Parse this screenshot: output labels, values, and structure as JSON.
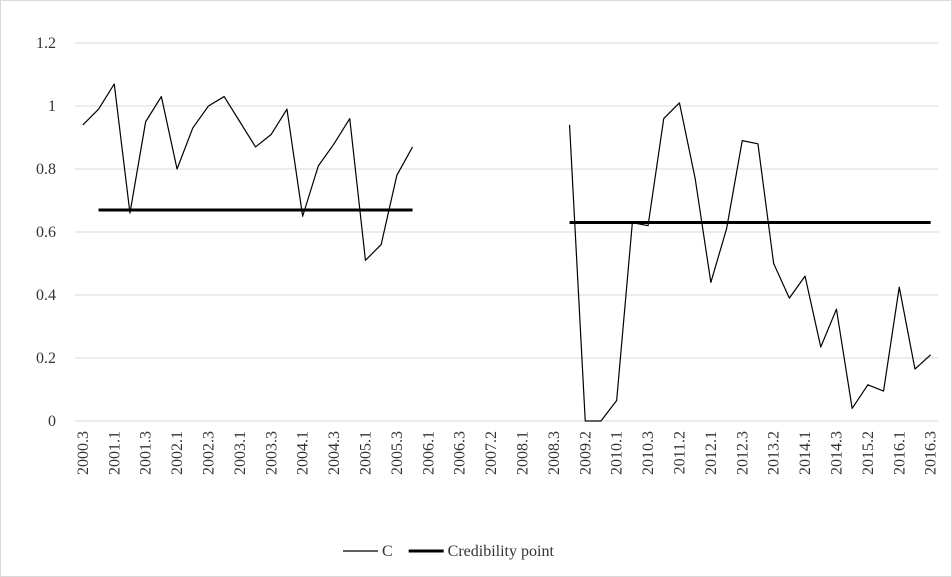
{
  "chart_data": {
    "type": "line",
    "categories": [
      "2000.3",
      null,
      "2001.1",
      null,
      "2001.3",
      null,
      "2002.1",
      null,
      "2002.3",
      null,
      "2003.1",
      null,
      "2003.3",
      null,
      "2004.1",
      null,
      "2004.3",
      null,
      "2005.1",
      null,
      "2005.3",
      null,
      "2006.1",
      null,
      "2006.3",
      null,
      "2007.2",
      null,
      "2008.1",
      null,
      "2008.3",
      null,
      "2009.2",
      null,
      "2010.1",
      null,
      "2010.3",
      null,
      "2011.2",
      null,
      "2012.1",
      null,
      "2012.3",
      null,
      "2013.2",
      null,
      "2014.1",
      null,
      "2014.3",
      null,
      "2015.2",
      null,
      "2016.1",
      null,
      "2016.3"
    ],
    "series": [
      {
        "name": "C",
        "color": "#000000",
        "width": 1.2,
        "values": [
          0.94,
          0.99,
          1.07,
          0.66,
          0.95,
          1.03,
          0.8,
          0.93,
          1.0,
          1.03,
          0.95,
          0.87,
          0.91,
          0.99,
          0.65,
          0.81,
          0.88,
          0.96,
          0.51,
          0.56,
          0.78,
          0.87,
          null,
          null,
          null,
          null,
          null,
          null,
          null,
          null,
          null,
          0.94,
          0.0,
          0.0,
          0.065,
          0.63,
          0.62,
          0.96,
          1.01,
          0.77,
          0.44,
          0.61,
          0.89,
          0.88,
          0.5,
          0.39,
          0.46,
          0.235,
          0.355,
          0.04,
          0.115,
          0.095,
          0.425,
          0.165,
          0.21
        ]
      },
      {
        "name": "Credibility point",
        "color": "#000000",
        "width": 3,
        "values": [
          null,
          0.67,
          0.67,
          0.67,
          0.67,
          0.67,
          0.67,
          0.67,
          0.67,
          0.67,
          0.67,
          0.67,
          0.67,
          0.67,
          0.67,
          0.67,
          0.67,
          0.67,
          0.67,
          0.67,
          0.67,
          0.67,
          null,
          null,
          null,
          null,
          null,
          null,
          null,
          null,
          null,
          0.63,
          0.63,
          0.63,
          0.63,
          0.63,
          0.63,
          0.63,
          0.63,
          0.63,
          0.63,
          0.63,
          0.63,
          0.63,
          0.63,
          0.63,
          0.63,
          0.63,
          0.63,
          0.63,
          0.63,
          0.63,
          0.63,
          0.63,
          0.63
        ]
      }
    ],
    "ylim": [
      0,
      1.2
    ],
    "yticks": [
      0,
      0.2,
      0.4,
      0.6,
      0.8,
      1,
      1.2
    ],
    "grid": true,
    "legend": "bottom"
  }
}
